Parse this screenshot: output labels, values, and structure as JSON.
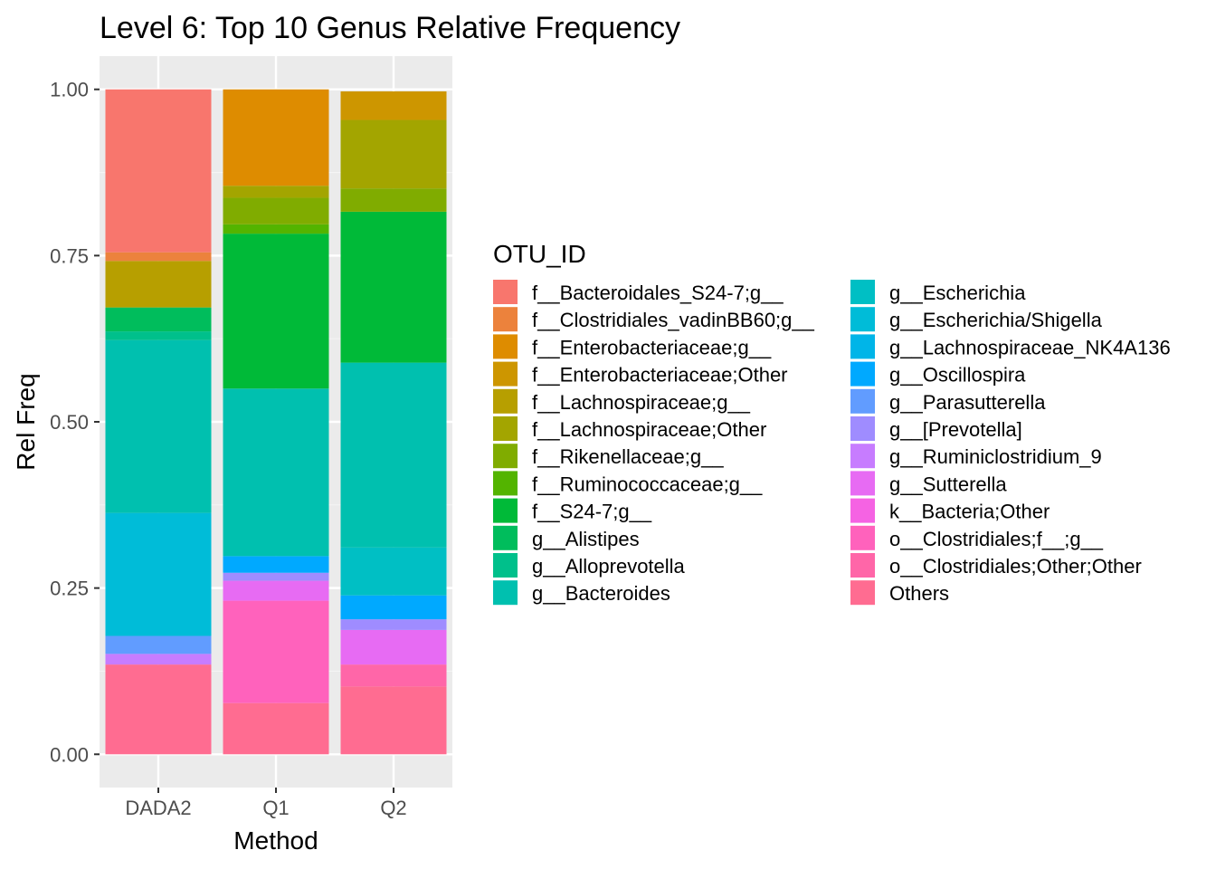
{
  "chart_data": {
    "type": "stacked-bar",
    "title": "Level 6: Top 10 Genus Relative Frequency",
    "xlabel": "Method",
    "ylabel": "Rel Freq",
    "categories": [
      "DADA2",
      "Q1",
      "Q2"
    ],
    "ylim": [
      -0.05,
      1.05
    ],
    "yticks": [
      "0.00",
      "0.25",
      "0.50",
      "0.75",
      "1.00"
    ],
    "grid": true,
    "legend_title": "OTU_ID",
    "legend_position": "right",
    "series": [
      {
        "name": "f__Bacteroidales_S24-7;g__",
        "color": "#F8766D",
        "values": [
          0.245,
          0,
          0
        ]
      },
      {
        "name": "f__Clostridiales_vadinBB60;g__",
        "color": "#EC823C",
        "values": [
          0.013,
          0,
          0
        ]
      },
      {
        "name": "f__Enterobacteriaceae;g__",
        "color": "#DE8C00",
        "values": [
          0,
          0.145,
          0
        ]
      },
      {
        "name": "f__Enterobacteriaceae;Other",
        "color": "#CD9600",
        "values": [
          0,
          0,
          0.043
        ]
      },
      {
        "name": "f__Lachnospiraceae;g__",
        "color": "#B79F00",
        "values": [
          0.07,
          0,
          0
        ]
      },
      {
        "name": "f__Lachnospiraceae;Other",
        "color": "#A3A500",
        "values": [
          0,
          0.018,
          0.103
        ]
      },
      {
        "name": "f__Rikenellaceae;g__",
        "color": "#80AC00",
        "values": [
          0,
          0.04,
          0.035
        ]
      },
      {
        "name": "f__Ruminococcaceae;g__",
        "color": "#53B400",
        "values": [
          0,
          0.014,
          0
        ]
      },
      {
        "name": "f__S24-7;g__",
        "color": "#00BA38",
        "values": [
          0,
          0.233,
          0.227
        ]
      },
      {
        "name": "g__Alistipes",
        "color": "#00BD5C",
        "values": [
          0.036,
          0,
          0
        ]
      },
      {
        "name": "g__Alloprevotella",
        "color": "#00C08B",
        "values": [
          0.013,
          0,
          0
        ]
      },
      {
        "name": "g__Bacteroides",
        "color": "#00C0AF",
        "values": [
          0.26,
          0.252,
          0.278
        ]
      },
      {
        "name": "g__Escherichia",
        "color": "#00BFC4",
        "values": [
          0,
          0,
          0.072
        ]
      },
      {
        "name": "g__Escherichia/Shigella",
        "color": "#00BCD8",
        "values": [
          0.185,
          0,
          0
        ]
      },
      {
        "name": "g__Lachnospiraceae_NK4A136",
        "color": "#00B5E8",
        "values": [
          0,
          0,
          0
        ]
      },
      {
        "name": "g__Oscillospira",
        "color": "#00A9FF",
        "values": [
          0,
          0.025,
          0.036
        ]
      },
      {
        "name": "g__Parasutterella",
        "color": "#619CFF",
        "values": [
          0.027,
          0,
          0
        ]
      },
      {
        "name": "g__[Prevotella]",
        "color": "#9F8CFF",
        "values": [
          0,
          0.012,
          0.016
        ]
      },
      {
        "name": "g__Ruminiclostridium_9",
        "color": "#C77CFF",
        "values": [
          0.016,
          0,
          0
        ]
      },
      {
        "name": "g__Sutterella",
        "color": "#E76BF3",
        "values": [
          0,
          0.03,
          0.052
        ]
      },
      {
        "name": "k__Bacteria;Other",
        "color": "#F563E3",
        "values": [
          0,
          0,
          0
        ]
      },
      {
        "name": "o__Clostridiales;f__;g__",
        "color": "#FF62BC",
        "values": [
          0,
          0.154,
          0
        ]
      },
      {
        "name": "o__Clostridiales;Other;Other",
        "color": "#FF66A8",
        "values": [
          0,
          0,
          0.033
        ]
      },
      {
        "name": "Others",
        "color": "#FF6C91",
        "values": [
          0.135,
          0.077,
          0.102
        ]
      }
    ]
  }
}
